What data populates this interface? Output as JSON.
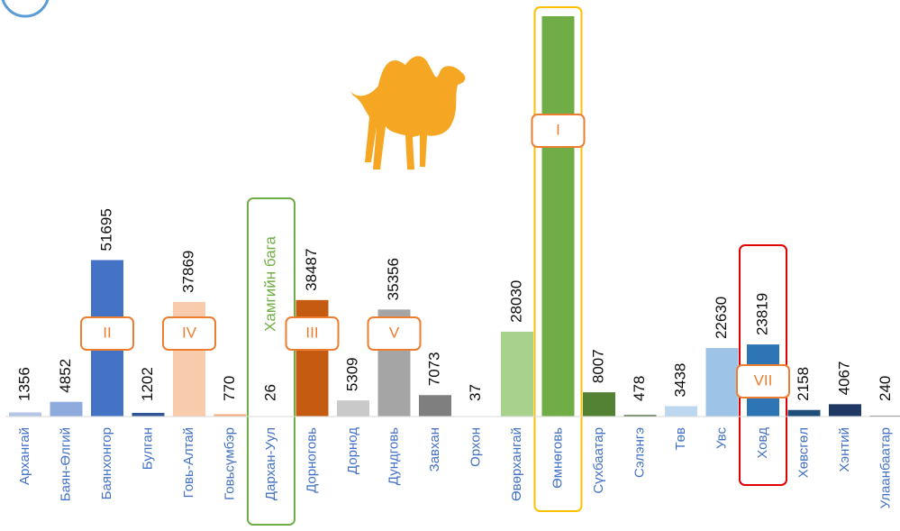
{
  "chart_data": {
    "type": "bar",
    "categories": [
      "Архангай",
      "Баян-Өлгий",
      "Баянхонгор",
      "Булган",
      "Говь-Алтай",
      "Говьсүмбэр",
      "Дархан-Уул",
      "Дорноговь",
      "Дорнод",
      "Дундговь",
      "Завхан",
      "Орхон",
      "Өвөрхангай",
      "Өмнөговь",
      "Сүхбаатар",
      "Сэлэнгэ",
      "Төв",
      "Увс",
      "Ховд",
      "Хөвсгөл",
      "Хэнтий",
      "Улаанбаатар"
    ],
    "values": [
      1356,
      4852,
      51695,
      1202,
      37869,
      770,
      26,
      38487,
      5309,
      35356,
      7073,
      37,
      28030,
      132284,
      8007,
      478,
      3438,
      22630,
      23819,
      2158,
      4067,
      240
    ],
    "colors": [
      "#b4c7e7",
      "#8faadc",
      "#4472c4",
      "#2f5597",
      "#f8cbad",
      "#f4b183",
      "#a9d18e",
      "#c55a11",
      "#c9c9c9",
      "#a5a5a5",
      "#7f7f7f",
      "#595959",
      "#a9d18e",
      "#70ad47",
      "#548235",
      "#375623",
      "#bdd7ee",
      "#9dc3e6",
      "#2e75b6",
      "#1f4e79",
      "#203864",
      "#0d0d0d"
    ],
    "annotations": [
      {
        "text": "II",
        "category": "Баянхонгор"
      },
      {
        "text": "IV",
        "category": "Говь-Алтай"
      },
      {
        "text": "III",
        "category": "Дорноговь"
      },
      {
        "text": "V",
        "category": "Дундговь"
      },
      {
        "text": "I",
        "category": "Өмнөговь"
      },
      {
        "text": "VII",
        "category": "Ховд"
      }
    ],
    "highlights": [
      {
        "category": "Өмнөговь",
        "color": "#ffc000"
      },
      {
        "category": "Дархан-Уул",
        "color": "#70ad47",
        "text": "Хамгийн бага"
      },
      {
        "category": "Ховд",
        "color": "#e00000"
      }
    ]
  }
}
